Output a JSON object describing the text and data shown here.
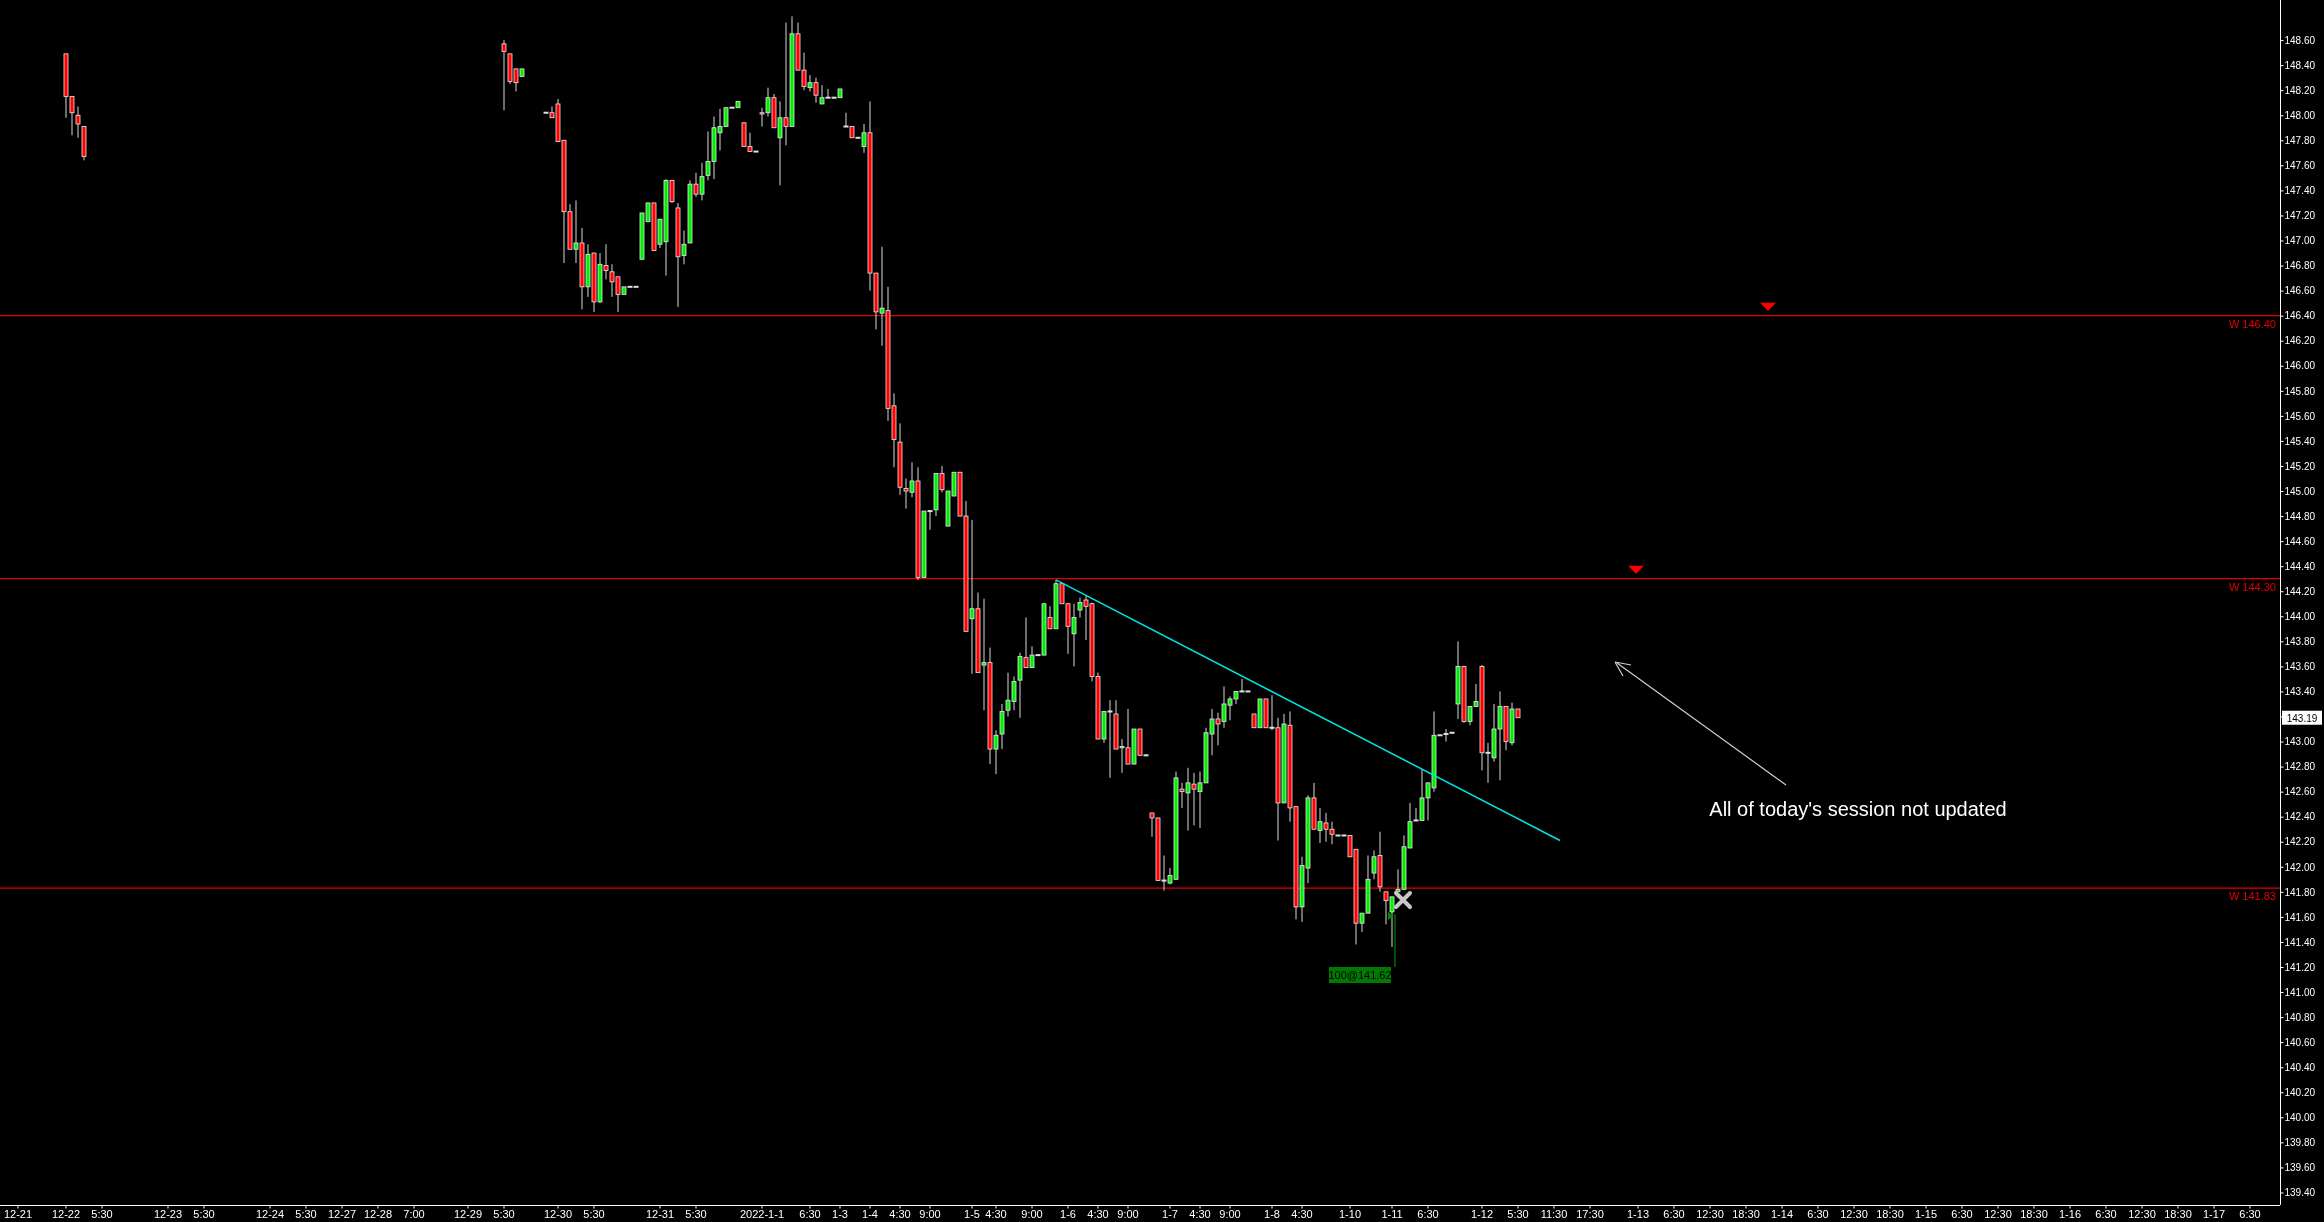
{
  "chart_data": {
    "type": "candlestick",
    "categories": [
      null,
      null,
      null,
      "12-21",
      null,
      null,
      null,
      null,
      null,
      null,
      null,
      "12-22",
      null,
      null,
      null,
      null,
      null,
      "5:30",
      null,
      null,
      null,
      null,
      null,
      null,
      null,
      null,
      null,
      null,
      "12-23",
      null,
      null,
      null,
      null,
      null,
      "5:30",
      null,
      null,
      null,
      null,
      null,
      null,
      null,
      null,
      null,
      null,
      "12-24",
      null,
      null,
      null,
      null,
      null,
      "5:30",
      null,
      null,
      null,
      null,
      null,
      "12-27",
      null,
      null,
      null,
      null,
      null,
      "12-28",
      null,
      null,
      null,
      null,
      null,
      "7:00",
      null,
      null,
      null,
      null,
      null,
      null,
      null,
      null,
      "12-29",
      null,
      null,
      null,
      null,
      null,
      "5:30",
      null,
      null,
      null,
      null,
      null,
      null,
      null,
      null,
      "12-30",
      null,
      null,
      null,
      null,
      null,
      "5:30",
      null,
      null,
      null,
      null,
      null,
      null,
      null,
      null,
      null,
      null,
      "12-31",
      null,
      null,
      null,
      null,
      null,
      "5:30",
      null,
      null,
      null,
      null,
      null,
      null,
      null,
      null,
      null,
      null,
      "2022-1-1",
      null,
      null,
      null,
      null,
      null,
      null,
      null,
      "6:30",
      null,
      null,
      null,
      null,
      "1-3",
      null,
      null,
      null,
      null,
      "1-4",
      null,
      null,
      null,
      null,
      "4:30",
      null,
      null,
      null,
      null,
      "9:00",
      null,
      null,
      null,
      null,
      null,
      null,
      "1-5",
      null,
      null,
      null,
      "4:30",
      null,
      null,
      null,
      null,
      null,
      "9:00",
      null,
      null,
      null,
      null,
      null,
      "1-6",
      null,
      null,
      null,
      null,
      "4:30",
      null,
      null,
      null,
      null,
      "9:00",
      null,
      null,
      null,
      null,
      null,
      null,
      "1-7",
      null,
      null,
      null,
      null,
      "4:30",
      null,
      null,
      null,
      null,
      "9:00",
      null,
      null,
      null,
      null,
      null,
      null,
      "1-8",
      null,
      null,
      null,
      null,
      "4:30",
      null,
      null,
      null,
      null,
      null,
      null,
      null,
      "1-10",
      null,
      null,
      null,
      null,
      null,
      null,
      "1-11",
      null,
      null,
      null,
      null,
      null,
      "6:30",
      null,
      null,
      null,
      null,
      null,
      null,
      null,
      null,
      "1-12",
      null,
      null,
      null,
      null,
      null,
      "5:30",
      null,
      null,
      null,
      null,
      null,
      "11:30",
      null,
      null,
      null,
      null,
      null,
      "17:30",
      null,
      null,
      null,
      null,
      null,
      null,
      null,
      "1-13",
      null,
      null,
      null,
      null,
      null,
      "6:30",
      null,
      null,
      null,
      null,
      null,
      "12:30",
      null,
      null,
      null,
      null,
      null,
      "18:30",
      null,
      null,
      null,
      null,
      null,
      "1-14",
      null,
      null,
      null,
      null,
      null,
      "6:30",
      null,
      null,
      null,
      null,
      null,
      "12:30",
      null,
      null,
      null,
      null,
      null,
      "18:30",
      null,
      null,
      null,
      null,
      null,
      "1-15",
      null,
      null,
      null,
      null,
      null,
      "6:30",
      null,
      null,
      null,
      null,
      null,
      "12:30",
      null,
      null,
      null,
      null,
      null,
      "18:30",
      null,
      null,
      null,
      null,
      null,
      "1-16",
      null,
      null,
      null,
      null,
      null,
      "6:30",
      null,
      null,
      null,
      null,
      null,
      "12:30",
      null,
      null,
      null,
      null,
      null,
      "18:30",
      null,
      null,
      null,
      null,
      null,
      "1-17",
      null,
      null,
      null,
      null,
      null,
      "6:30",
      null,
      null,
      null,
      null
    ],
    "ohlc": [
      null,
      null,
      null,
      null,
      null,
      null,
      null,
      null,
      null,
      null,
      null,
      [
        148.49,
        148.49,
        147.98,
        148.15
      ],
      [
        148.15,
        148.15,
        147.84,
        148.02
      ],
      [
        148.0,
        148.07,
        147.82,
        147.93
      ],
      [
        147.91,
        147.91,
        147.64,
        147.67
      ],
      null,
      null,
      null,
      null,
      null,
      null,
      null,
      null,
      null,
      null,
      null,
      null,
      null,
      null,
      null,
      null,
      null,
      null,
      null,
      null,
      null,
      null,
      null,
      null,
      null,
      null,
      null,
      null,
      null,
      null,
      null,
      null,
      null,
      null,
      null,
      null,
      null,
      null,
      null,
      null,
      null,
      null,
      null,
      null,
      null,
      null,
      null,
      null,
      null,
      null,
      null,
      null,
      null,
      null,
      null,
      null,
      null,
      null,
      null,
      null,
      null,
      null,
      null,
      null,
      null,
      null,
      null,
      null,
      null,
      [
        148.57,
        148.6,
        148.04,
        148.51
      ],
      [
        148.49,
        148.49,
        148.25,
        148.27
      ],
      [
        148.37,
        148.37,
        148.19,
        148.26
      ],
      [
        148.31,
        148.37,
        148.31,
        148.37
      ],
      null,
      null,
      null,
      [
        148.02,
        148.02,
        148.02,
        148.02
      ],
      [
        148.02,
        148.07,
        147.98,
        147.98
      ],
      [
        148.09,
        148.13,
        147.79,
        147.79
      ],
      [
        147.8,
        147.8,
        146.82,
        147.23
      ],
      [
        147.23,
        147.29,
        146.93,
        146.93
      ],
      [
        146.93,
        147.32,
        146.82,
        146.98
      ],
      [
        146.98,
        147.1,
        146.45,
        146.63
      ],
      [
        146.63,
        146.97,
        146.55,
        146.89
      ],
      [
        146.9,
        146.9,
        146.43,
        146.51
      ],
      [
        146.51,
        146.9,
        146.5,
        146.81
      ],
      [
        146.8,
        146.97,
        146.69,
        146.76
      ],
      [
        146.75,
        146.81,
        146.55,
        146.67
      ],
      [
        146.71,
        146.71,
        146.43,
        146.57
      ],
      [
        146.57,
        146.63,
        146.57,
        146.63
      ],
      [
        146.63,
        146.63,
        146.63,
        146.63
      ],
      [
        146.63,
        146.63,
        146.63,
        146.63
      ],
      [
        146.85,
        147.22,
        146.85,
        147.22
      ],
      [
        147.15,
        147.3,
        147.15,
        147.3
      ],
      [
        147.3,
        147.3,
        146.92,
        146.92
      ],
      [
        146.97,
        147.17,
        146.94,
        147.17
      ],
      [
        146.99,
        147.49,
        146.72,
        147.48
      ],
      [
        147.48,
        147.48,
        147.3,
        147.31
      ],
      [
        147.26,
        147.3,
        146.47,
        146.87
      ],
      [
        146.88,
        147.08,
        146.81,
        146.97
      ],
      [
        146.98,
        147.48,
        146.98,
        147.45
      ],
      [
        147.45,
        147.54,
        147.35,
        147.37
      ],
      [
        147.37,
        147.62,
        147.32,
        147.51
      ],
      [
        147.52,
        147.87,
        147.48,
        147.63
      ],
      [
        147.63,
        147.99,
        147.49,
        147.9
      ],
      [
        147.86,
        148.05,
        147.72,
        147.91
      ],
      [
        147.91,
        148.06,
        147.91,
        148.06
      ],
      [
        148.06,
        148.06,
        148.06,
        148.06
      ],
      [
        148.06,
        148.11,
        148.06,
        148.11
      ],
      [
        147.94,
        147.94,
        147.75,
        147.75
      ],
      [
        147.75,
        147.86,
        147.71,
        147.71
      ],
      [
        147.71,
        147.71,
        147.71,
        147.71
      ],
      [
        148.02,
        148.06,
        147.91,
        148.01
      ],
      [
        148.02,
        148.22,
        147.99,
        148.14
      ],
      [
        148.14,
        148.17,
        147.9,
        147.9
      ],
      [
        147.82,
        148.11,
        147.44,
        147.98
      ],
      [
        147.98,
        148.74,
        147.76,
        147.91
      ],
      [
        147.91,
        148.79,
        147.91,
        148.65
      ],
      [
        148.65,
        148.74,
        148.36,
        148.36
      ],
      [
        148.36,
        148.5,
        148.2,
        148.23
      ],
      [
        148.22,
        148.32,
        148.19,
        148.26
      ],
      [
        148.26,
        148.3,
        148.1,
        148.16
      ],
      [
        148.09,
        148.24,
        148.09,
        148.14
      ],
      [
        148.14,
        148.21,
        148.14,
        148.14
      ],
      [
        148.14,
        148.14,
        148.14,
        148.14
      ],
      [
        148.14,
        148.21,
        148.14,
        148.21
      ],
      [
        147.91,
        148.02,
        147.91,
        147.91
      ],
      [
        147.91,
        147.91,
        147.82,
        147.82
      ],
      [
        147.82,
        147.82,
        147.82,
        147.82
      ],
      [
        147.75,
        147.93,
        147.7,
        147.86
      ],
      [
        147.86,
        148.11,
        146.6,
        146.74
      ],
      [
        146.74,
        146.74,
        146.29,
        146.43
      ],
      [
        146.42,
        146.95,
        146.16,
        146.46
      ],
      [
        146.44,
        146.63,
        145.56,
        145.66
      ],
      [
        145.68,
        145.78,
        145.19,
        145.41
      ],
      [
        145.39,
        145.54,
        144.97,
        145.03
      ],
      [
        145.02,
        145.1,
        144.86,
        145.0
      ],
      [
        144.99,
        145.23,
        144.95,
        145.08
      ],
      [
        145.08,
        145.19,
        144.29,
        144.31
      ],
      [
        144.31,
        144.84,
        144.31,
        144.84
      ],
      [
        144.84,
        144.84,
        144.69,
        144.84
      ],
      [
        144.85,
        145.14,
        144.8,
        145.14
      ],
      [
        145.14,
        145.2,
        144.99,
        145.01
      ],
      [
        144.72,
        145.0,
        144.72,
        145.0
      ],
      [
        144.96,
        145.15,
        144.96,
        145.15
      ],
      [
        145.15,
        145.15,
        144.8,
        144.8
      ],
      [
        144.8,
        144.92,
        143.88,
        143.88
      ],
      [
        143.98,
        144.77,
        143.54,
        144.06
      ],
      [
        144.06,
        144.19,
        143.55,
        143.55
      ],
      [
        143.61,
        144.14,
        143.25,
        143.63
      ],
      [
        143.63,
        143.75,
        142.82,
        142.94
      ],
      [
        142.94,
        143.09,
        142.74,
        143.05
      ],
      [
        143.06,
        143.3,
        142.94,
        143.24
      ],
      [
        143.25,
        143.55,
        143.2,
        143.33
      ],
      [
        143.32,
        143.52,
        143.25,
        143.48
      ],
      [
        143.49,
        143.71,
        143.19,
        143.68
      ],
      [
        143.67,
        143.99,
        143.59,
        143.59
      ],
      [
        143.59,
        143.76,
        143.59,
        143.69
      ],
      [
        143.69,
        143.69,
        143.69,
        143.69
      ],
      [
        143.69,
        144.1,
        143.69,
        144.1
      ],
      [
        143.99,
        144.08,
        143.9,
        143.9
      ],
      [
        143.9,
        144.29,
        143.9,
        144.26
      ],
      [
        144.26,
        144.26,
        144.1,
        144.1
      ],
      [
        144.1,
        144.1,
        143.7,
        143.92
      ],
      [
        143.86,
        144.1,
        143.6,
        143.99
      ],
      [
        144.05,
        144.15,
        143.99,
        144.11
      ],
      [
        144.13,
        144.16,
        143.81,
        144.08
      ],
      [
        144.1,
        144.11,
        143.48,
        143.52
      ],
      [
        143.52,
        143.55,
        143.02,
        143.02
      ],
      [
        143.02,
        143.24,
        142.99,
        143.24
      ],
      [
        143.24,
        143.33,
        142.71,
        143.24
      ],
      [
        143.22,
        143.33,
        142.94,
        142.94
      ],
      [
        142.95,
        143.02,
        142.75,
        142.96
      ],
      [
        142.95,
        143.26,
        142.82,
        142.82
      ],
      [
        142.82,
        143.1,
        142.82,
        143.1
      ],
      [
        143.1,
        143.1,
        142.89,
        142.89
      ],
      [
        142.89,
        142.89,
        142.89,
        142.89
      ],
      [
        142.43,
        142.43,
        142.24,
        142.39
      ],
      [
        142.39,
        142.39,
        141.89,
        141.89
      ],
      [
        141.89,
        142.09,
        141.81,
        141.89
      ],
      [
        141.87,
        141.99,
        141.86,
        141.93
      ],
      [
        141.9,
        142.76,
        141.9,
        142.71
      ],
      [
        142.62,
        142.67,
        142.47,
        142.6
      ],
      [
        142.59,
        142.79,
        142.29,
        142.67
      ],
      [
        142.66,
        142.75,
        142.33,
        142.62
      ],
      [
        142.6,
        142.76,
        142.31,
        142.67
      ],
      [
        142.67,
        143.11,
        142.67,
        143.07
      ],
      [
        143.06,
        143.26,
        142.89,
        143.18
      ],
      [
        143.18,
        143.23,
        142.97,
        143.14
      ],
      [
        143.16,
        143.44,
        143.11,
        143.3
      ],
      [
        143.29,
        143.36,
        143.17,
        143.34
      ],
      [
        143.34,
        143.4,
        143.3,
        143.4
      ],
      [
        143.4,
        143.5,
        143.4,
        143.4
      ],
      [
        143.4,
        143.4,
        143.4,
        143.4
      ],
      [
        143.22,
        143.22,
        143.11,
        143.11
      ],
      [
        143.11,
        143.34,
        143.11,
        143.34
      ],
      [
        143.34,
        143.34,
        143.11,
        143.11
      ],
      [
        143.11,
        143.37,
        143.09,
        143.11
      ],
      [
        143.11,
        143.19,
        142.21,
        142.51
      ],
      [
        142.51,
        143.22,
        142.51,
        143.14
      ],
      [
        143.13,
        143.24,
        142.36,
        142.47
      ],
      [
        142.48,
        142.48,
        141.58,
        141.68
      ],
      [
        141.68,
        142.08,
        141.56,
        142.01
      ],
      [
        141.99,
        142.57,
        141.87,
        142.55
      ],
      [
        142.55,
        142.67,
        142.3,
        142.3
      ],
      [
        142.29,
        142.47,
        142.19,
        142.36
      ],
      [
        142.35,
        142.43,
        142.2,
        142.3
      ],
      [
        142.3,
        142.36,
        142.18,
        142.26
      ],
      [
        142.25,
        142.25,
        142.25,
        142.25
      ],
      [
        142.25,
        142.25,
        142.25,
        142.25
      ],
      [
        142.25,
        142.25,
        142.08,
        142.08
      ],
      [
        142.14,
        142.14,
        141.38,
        141.55
      ],
      [
        141.55,
        141.63,
        141.48,
        141.63
      ],
      [
        141.63,
        142.09,
        141.63,
        141.9
      ],
      [
        141.95,
        142.13,
        141.9,
        142.08
      ],
      [
        142.09,
        142.28,
        141.8,
        141.84
      ],
      [
        141.8,
        141.8,
        141.54,
        141.73
      ],
      [
        141.64,
        141.76,
        141.36,
        141.76
      ],
      [
        141.8,
        141.98,
        141.8,
        141.82
      ],
      [
        141.82,
        142.25,
        141.82,
        142.16
      ],
      [
        142.15,
        142.51,
        142.15,
        142.36
      ],
      [
        142.37,
        142.47,
        142.37,
        142.37
      ],
      [
        142.37,
        142.78,
        142.37,
        142.55
      ],
      [
        142.55,
        142.67,
        142.37,
        142.67
      ],
      [
        142.63,
        143.24,
        142.6,
        143.05
      ],
      [
        143.05,
        143.05,
        143.05,
        143.05
      ],
      [
        143.06,
        143.1,
        143.0,
        143.06
      ],
      [
        143.07,
        143.07,
        143.07,
        143.07
      ],
      [
        143.3,
        143.8,
        143.18,
        143.6
      ],
      [
        143.6,
        143.6,
        143.15,
        143.16
      ],
      [
        143.16,
        143.28,
        143.13,
        143.28
      ],
      [
        143.28,
        143.46,
        143.28,
        143.32
      ],
      [
        143.6,
        143.61,
        142.77,
        142.91
      ],
      [
        142.91,
        142.99,
        142.67,
        142.91
      ],
      [
        142.87,
        143.3,
        142.84,
        143.1
      ],
      [
        143.1,
        143.4,
        142.69,
        143.28
      ],
      [
        143.28,
        143.28,
        142.93,
        143.0
      ],
      [
        142.99,
        143.31,
        142.97,
        143.26
      ],
      [
        143.26,
        143.26,
        143.19,
        143.19
      ],
      null,
      null,
      null,
      null,
      null,
      null,
      null,
      null,
      null,
      null,
      null,
      null,
      null,
      null,
      null,
      null,
      null,
      null,
      null,
      null,
      null,
      null,
      null,
      null,
      null,
      null,
      null,
      null,
      null,
      null,
      null,
      null,
      null,
      null,
      null,
      null,
      null,
      null,
      null,
      null,
      null,
      null,
      null,
      null,
      null,
      null,
      null,
      null,
      null,
      null,
      null,
      null,
      null,
      null,
      null,
      null,
      null,
      null,
      null,
      null,
      null,
      null,
      null,
      null,
      null,
      null,
      null,
      null,
      null,
      null,
      null,
      null,
      null,
      null,
      null,
      null,
      null,
      null,
      null,
      null,
      null,
      null,
      null,
      null,
      null,
      null,
      null,
      null,
      null,
      null,
      null,
      null,
      null,
      null,
      null,
      null,
      null,
      null,
      null,
      null,
      null,
      null,
      null,
      null,
      null,
      null,
      null,
      null,
      null,
      null,
      null,
      null,
      null,
      null,
      null,
      null,
      null,
      null,
      null,
      null,
      null,
      null,
      null,
      null,
      null,
      null
    ],
    "series": [
      {
        "type": "line",
        "color": "#00e5e5",
        "line_style": "solid",
        "values": [
          null,
          null,
          null,
          null,
          null,
          null,
          null,
          null,
          null,
          null,
          null,
          null,
          null,
          null,
          null,
          null,
          null,
          null,
          null,
          null,
          null,
          null,
          null,
          null,
          null,
          null,
          null,
          null,
          null,
          null,
          null,
          null,
          null,
          null,
          null,
          null,
          null,
          null,
          null,
          null,
          null,
          null,
          null,
          null,
          null,
          null,
          null,
          null,
          null,
          null,
          null,
          null,
          null,
          null,
          null,
          null,
          null,
          null,
          null,
          null,
          null,
          null,
          null,
          null,
          null,
          null,
          null,
          null,
          null,
          null,
          null,
          null,
          null,
          null,
          null,
          null,
          null,
          null,
          null,
          null,
          null,
          null,
          null,
          null,
          null,
          null,
          null,
          null,
          null,
          null,
          null,
          null,
          null,
          null,
          null,
          null,
          null,
          null,
          null,
          null,
          null,
          null,
          null,
          null,
          null,
          null,
          null,
          null,
          null,
          null,
          null,
          null,
          null,
          null,
          null,
          null,
          null,
          null,
          null,
          null,
          null,
          null,
          null,
          null,
          null,
          null,
          null,
          null,
          null,
          null,
          null,
          null,
          null,
          null,
          null,
          null,
          null,
          null,
          null,
          null,
          null,
          null,
          null,
          null,
          null,
          null,
          null,
          null,
          null,
          null,
          null,
          null,
          null,
          null,
          null,
          null,
          null,
          null,
          null,
          null,
          null,
          null,
          null,
          null,
          null,
          null,
          null,
          null,
          null,
          null,
          null,
          null,
          null,
          null,
          null,
          null,
          144.29,
          null,
          null,
          null,
          null,
          null,
          null,
          null,
          null,
          null,
          null,
          null,
          null,
          null,
          null,
          null,
          null,
          null,
          null,
          null,
          null,
          null,
          null,
          null,
          null,
          null,
          null,
          null,
          null,
          null,
          null,
          null,
          null,
          null,
          null,
          null,
          null,
          null,
          null,
          null,
          null,
          null,
          null,
          null,
          null,
          null,
          null,
          null,
          null,
          null,
          null,
          null,
          null,
          null,
          null,
          null,
          null,
          null,
          null,
          null,
          null,
          null,
          null,
          null,
          null,
          null,
          null,
          null,
          null,
          null,
          null,
          null,
          null,
          null,
          null,
          null,
          null,
          null,
          null,
          null,
          null,
          null,
          null,
          null,
          142.21,
          null,
          null,
          null,
          null,
          null,
          null,
          null,
          null,
          null,
          null,
          null,
          null,
          null,
          null,
          null,
          null,
          null,
          null,
          null,
          null,
          null,
          null,
          null,
          null,
          null,
          null,
          null,
          null,
          null,
          null,
          null,
          null,
          null,
          null,
          null,
          null,
          null,
          null,
          null,
          null,
          null,
          null,
          null,
          null,
          null,
          null,
          null,
          null,
          null,
          null,
          null,
          null,
          null,
          null,
          null,
          null,
          null,
          null,
          null,
          null,
          null,
          null,
          null,
          null,
          null,
          null,
          null,
          null,
          null,
          null,
          null,
          null,
          null,
          null,
          null,
          null,
          null,
          null,
          null,
          null,
          null,
          null,
          null,
          null,
          null,
          null,
          null,
          null,
          null,
          null,
          null,
          null,
          null,
          null,
          null,
          null,
          null,
          null,
          null,
          null,
          null,
          null,
          null,
          null,
          null,
          null,
          null,
          null,
          null,
          null,
          null,
          null,
          null,
          null,
          null,
          null,
          null,
          null,
          null
        ]
      }
    ],
    "ylim": [
      139.3,
      148.92
    ],
    "yticks": [
      {
        "value": 139.4,
        "label": "139.40"
      },
      {
        "value": 139.6,
        "label": "139.60"
      },
      {
        "value": 139.8,
        "label": "139.80"
      },
      {
        "value": 140.0,
        "label": "140.00"
      },
      {
        "value": 140.2,
        "label": "140.20"
      },
      {
        "value": 140.4,
        "label": "140.40"
      },
      {
        "value": 140.6,
        "label": "140.60"
      },
      {
        "value": 140.8,
        "label": "140.80"
      },
      {
        "value": 141.0,
        "label": "141.00"
      },
      {
        "value": 141.2,
        "label": "141.20"
      },
      {
        "value": 141.4,
        "label": "141.40"
      },
      {
        "value": 141.6,
        "label": "141.60"
      },
      {
        "value": 141.8,
        "label": "141.80"
      },
      {
        "value": 142.0,
        "label": "142.00"
      },
      {
        "value": 142.2,
        "label": "142.20"
      },
      {
        "value": 142.4,
        "label": "142.40"
      },
      {
        "value": 142.6,
        "label": "142.60"
      },
      {
        "value": 142.8,
        "label": "142.80"
      },
      {
        "value": 143.0,
        "label": "143.00"
      },
      {
        "value": 143.2,
        "label": null
      },
      {
        "value": 143.4,
        "label": "143.40"
      },
      {
        "value": 143.6,
        "label": "143.60"
      },
      {
        "value": 143.8,
        "label": "143.80"
      },
      {
        "value": 144.0,
        "label": "144.00"
      },
      {
        "value": 144.2,
        "label": "144.20"
      },
      {
        "value": 144.4,
        "label": "144.40"
      },
      {
        "value": 144.6,
        "label": "144.60"
      },
      {
        "value": 144.8,
        "label": "144.80"
      },
      {
        "value": 145.0,
        "label": "145.00"
      },
      {
        "value": 145.2,
        "label": "145.20"
      },
      {
        "value": 145.4,
        "label": "145.40"
      },
      {
        "value": 145.6,
        "label": "145.60"
      },
      {
        "value": 145.8,
        "label": "145.80"
      },
      {
        "value": 146.0,
        "label": "146.00"
      },
      {
        "value": 146.2,
        "label": "146.20"
      },
      {
        "value": 146.4,
        "label": "146.40"
      },
      {
        "value": 146.6,
        "label": "146.60"
      },
      {
        "value": 146.8,
        "label": "146.80"
      },
      {
        "value": 147.0,
        "label": "147.00"
      },
      {
        "value": 147.2,
        "label": "147.20"
      },
      {
        "value": 147.4,
        "label": "147.40"
      },
      {
        "value": 147.6,
        "label": "147.60"
      },
      {
        "value": 147.8,
        "label": "147.80"
      },
      {
        "value": 148.0,
        "label": "148.00"
      },
      {
        "value": 148.2,
        "label": "148.20"
      },
      {
        "value": 148.4,
        "label": "148.40"
      },
      {
        "value": 148.6,
        "label": "148.60"
      }
    ],
    "ref_lines": [
      {
        "axis": "y",
        "value": 146.4,
        "label": "W 146.40",
        "color": "#e00000"
      },
      {
        "axis": "y",
        "value": 144.3,
        "label": "W 144.30",
        "color": "#e00000"
      },
      {
        "axis": "y",
        "value": 141.83,
        "label": "W 141.83",
        "color": "#e00000"
      }
    ],
    "annotations": [
      {
        "text": "143.19",
        "y": 143.19
      },
      {
        "text": "100@141.62",
        "x": "1-11",
        "y": 141.62
      },
      "All of today's session not updated"
    ]
  }
}
